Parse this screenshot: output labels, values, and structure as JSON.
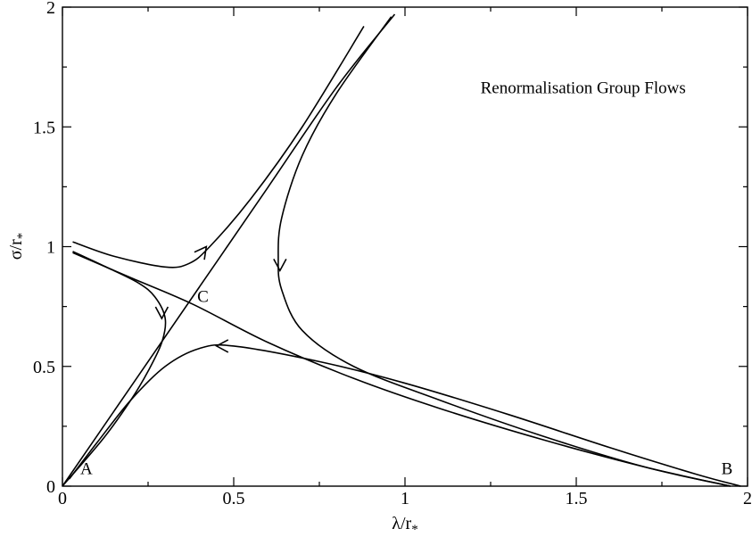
{
  "chart_data": {
    "type": "line",
    "xlabel": "λ/r",
    "xlabel_sub": "*",
    "ylabel": "σ/r",
    "ylabel_sub": "*",
    "xlim": [
      0,
      2
    ],
    "ylim": [
      0,
      2
    ],
    "xticks": [
      0,
      0.5,
      1,
      1.5,
      2
    ],
    "xtick_labels": [
      "0",
      "0.5",
      "1",
      "1.5",
      "2"
    ],
    "yticks": [
      0,
      0.5,
      1,
      1.5,
      2
    ],
    "ytick_labels": [
      "0",
      "0.5",
      "1",
      "1.5",
      "2"
    ],
    "legend": "none",
    "grid": false,
    "annotations": [
      {
        "text": "Renormalisation Group Flows",
        "x": 1.52,
        "y": 1.64
      },
      {
        "text": "A",
        "x": 0.07,
        "y": 0.05
      },
      {
        "text": "B",
        "x": 1.94,
        "y": 0.05
      },
      {
        "text": "C",
        "x": 0.41,
        "y": 0.77
      }
    ],
    "series": [
      {
        "points": [
          [
            0.0,
            0.0
          ],
          [
            0.2,
            0.416
          ],
          [
            0.4,
            0.832
          ],
          [
            0.6,
            1.248
          ],
          [
            0.8,
            1.665
          ],
          [
            0.97,
            1.97
          ]
        ]
      },
      {
        "points": [
          [
            0.03,
            0.975
          ],
          [
            0.2,
            0.87
          ],
          [
            0.38,
            0.76
          ],
          [
            0.6,
            0.6
          ],
          [
            0.85,
            0.45
          ],
          [
            1.1,
            0.325
          ],
          [
            1.4,
            0.195
          ],
          [
            1.7,
            0.08
          ],
          [
            1.95,
            0.0
          ]
        ]
      },
      {
        "points": [
          [
            0.03,
            1.02
          ],
          [
            0.15,
            0.96
          ],
          [
            0.3,
            0.915
          ],
          [
            0.37,
            0.93
          ],
          [
            0.43,
            1.0
          ],
          [
            0.55,
            1.2
          ],
          [
            0.7,
            1.5
          ],
          [
            0.88,
            1.92
          ]
        ]
      },
      {
        "points": [
          [
            0.03,
            0.98
          ],
          [
            0.12,
            0.92
          ],
          [
            0.22,
            0.85
          ],
          [
            0.27,
            0.79
          ],
          [
            0.3,
            0.7
          ],
          [
            0.29,
            0.6
          ],
          [
            0.25,
            0.48
          ],
          [
            0.2,
            0.36
          ],
          [
            0.12,
            0.2
          ],
          [
            0.0,
            0.0
          ]
        ]
      },
      {
        "points": [
          [
            0.02,
            0.03
          ],
          [
            0.1,
            0.18
          ],
          [
            0.2,
            0.36
          ],
          [
            0.3,
            0.5
          ],
          [
            0.4,
            0.575
          ],
          [
            0.5,
            0.585
          ],
          [
            0.75,
            0.52
          ],
          [
            1.0,
            0.43
          ],
          [
            1.3,
            0.3
          ],
          [
            1.6,
            0.16
          ],
          [
            1.85,
            0.05
          ],
          [
            1.98,
            0.0
          ]
        ]
      },
      {
        "points": [
          [
            0.96,
            1.96
          ],
          [
            0.8,
            1.64
          ],
          [
            0.7,
            1.38
          ],
          [
            0.64,
            1.12
          ],
          [
            0.63,
            0.95
          ],
          [
            0.64,
            0.82
          ],
          [
            0.7,
            0.65
          ],
          [
            0.85,
            0.5
          ],
          [
            1.1,
            0.36
          ],
          [
            1.4,
            0.21
          ],
          [
            1.7,
            0.08
          ],
          [
            1.95,
            0.0
          ]
        ]
      }
    ],
    "arrows": [
      {
        "x": 0.42,
        "y": 1.0,
        "dir": "up-right"
      },
      {
        "x": 0.29,
        "y": 0.7,
        "dir": "down"
      },
      {
        "x": 0.45,
        "y": 0.585,
        "dir": "left"
      },
      {
        "x": 0.635,
        "y": 0.9,
        "dir": "down"
      }
    ]
  }
}
